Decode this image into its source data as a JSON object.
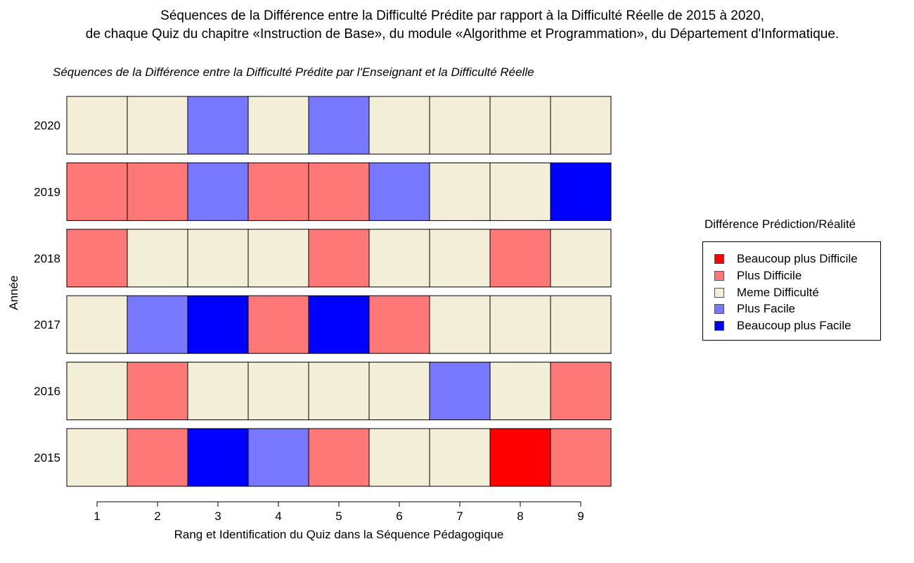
{
  "chart_data": {
    "type": "heatmap",
    "title": "Séquences de la Différence entre la Difficulté Prédite par rapport à la Difficulté Réelle de 2015 à 2020,",
    "title_line2": "de chaque Quiz du chapitre «Instruction de Base», du module «Algorithme et Programmation», du Département d'Informatique.",
    "subtitle": "Séquences de la Différence entre la Difficulté Prédite par l'Enseignant et la Difficulté Réelle",
    "xlabel": "Rang et Identification du Quiz dans la Séquence Pédagogique",
    "ylabel": "Année",
    "x": [
      1,
      2,
      3,
      4,
      5,
      6,
      7,
      8,
      9
    ],
    "legend_title": "Différence Prédiction/Réalité",
    "legend_placement": "right",
    "categories": [
      {
        "key": "BPD",
        "label": "Beaucoup plus Difficile",
        "color": "#ff0000"
      },
      {
        "key": "PD",
        "label": "Plus Difficile",
        "color": "#ff7878"
      },
      {
        "key": "MD",
        "label": "Meme Difficulté",
        "color": "#f3eed8"
      },
      {
        "key": "PF",
        "label": "Plus Facile",
        "color": "#7878ff"
      },
      {
        "key": "BPF",
        "label": "Beaucoup plus Facile",
        "color": "#0000ff"
      }
    ],
    "rows": [
      {
        "year": "2020",
        "values": [
          "MD",
          "MD",
          "PF",
          "MD",
          "PF",
          "MD",
          "MD",
          "MD",
          "MD"
        ]
      },
      {
        "year": "2019",
        "values": [
          "PD",
          "PD",
          "PF",
          "PD",
          "PD",
          "PF",
          "MD",
          "MD",
          "BPF"
        ]
      },
      {
        "year": "2018",
        "values": [
          "PD",
          "MD",
          "MD",
          "MD",
          "PD",
          "MD",
          "MD",
          "PD",
          "MD"
        ]
      },
      {
        "year": "2017",
        "values": [
          "MD",
          "PF",
          "BPF",
          "PD",
          "BPF",
          "PD",
          "MD",
          "MD",
          "MD"
        ]
      },
      {
        "year": "2016",
        "values": [
          "MD",
          "PD",
          "MD",
          "MD",
          "MD",
          "MD",
          "PF",
          "MD",
          "PD"
        ]
      },
      {
        "year": "2015",
        "values": [
          "MD",
          "PD",
          "BPF",
          "PF",
          "PD",
          "MD",
          "MD",
          "BPD",
          "PD"
        ]
      }
    ]
  }
}
